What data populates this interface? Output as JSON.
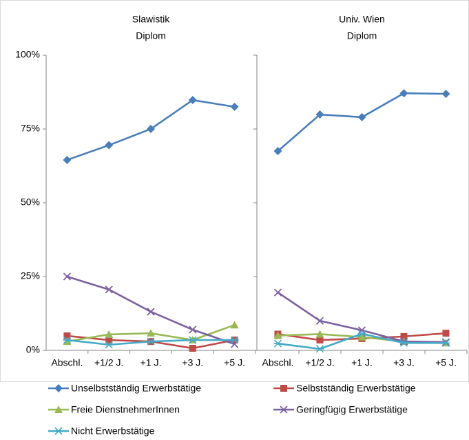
{
  "chart_data": {
    "type": "line",
    "categories": [
      "Abschl.",
      "+1/2 J.",
      "+1 J.",
      "+3 J.",
      "+5 J."
    ],
    "ylim": [
      0,
      100
    ],
    "yticks": [
      {
        "value": 0,
        "label": "0%"
      },
      {
        "value": 25,
        "label": "25%"
      },
      {
        "value": 50,
        "label": "50%"
      },
      {
        "value": 75,
        "label": "75%"
      },
      {
        "value": 100,
        "label": "100%"
      }
    ],
    "panels": [
      {
        "title": [
          "Slawistik",
          "Diplom"
        ]
      },
      {
        "title": [
          "Univ. Wien",
          "Diplom"
        ]
      }
    ],
    "series": [
      {
        "name": "Unselbstständig Erwerbstätige",
        "color": "#4a7ebb",
        "marker": "diamond",
        "values": [
          [
            64.5,
            69.5,
            75,
            84.8,
            82.5
          ],
          [
            67.5,
            79.9,
            79,
            87.1,
            86.9
          ]
        ]
      },
      {
        "name": "Selbstständig Erwerbstätige",
        "color": "#be4b48",
        "marker": "square",
        "values": [
          [
            4.9,
            3.5,
            3,
            0.7,
            3.5
          ],
          [
            5.5,
            3.5,
            4,
            4.7,
            5.8
          ]
        ]
      },
      {
        "name": "Freie DienstnehmerInnen",
        "color": "#98b954",
        "marker": "triangle",
        "values": [
          [
            3,
            5.4,
            5.8,
            3.5,
            8.6
          ],
          [
            5,
            5.5,
            4.5,
            3,
            2.5
          ]
        ]
      },
      {
        "name": "Geringfügig Erwerbstätige",
        "color": "#7d60a0",
        "marker": "x",
        "values": [
          [
            25,
            20.6,
            13.1,
            7,
            2.1
          ],
          [
            19.6,
            10,
            6.8,
            3,
            2.8
          ]
        ]
      },
      {
        "name": "Nicht Erwerbstätige",
        "color": "#46aac5",
        "marker": "star",
        "values": [
          [
            3.5,
            1.9,
            3,
            3.5,
            3.5
          ],
          [
            2.3,
            0.5,
            5.6,
            2.5,
            2.5
          ]
        ]
      }
    ]
  }
}
